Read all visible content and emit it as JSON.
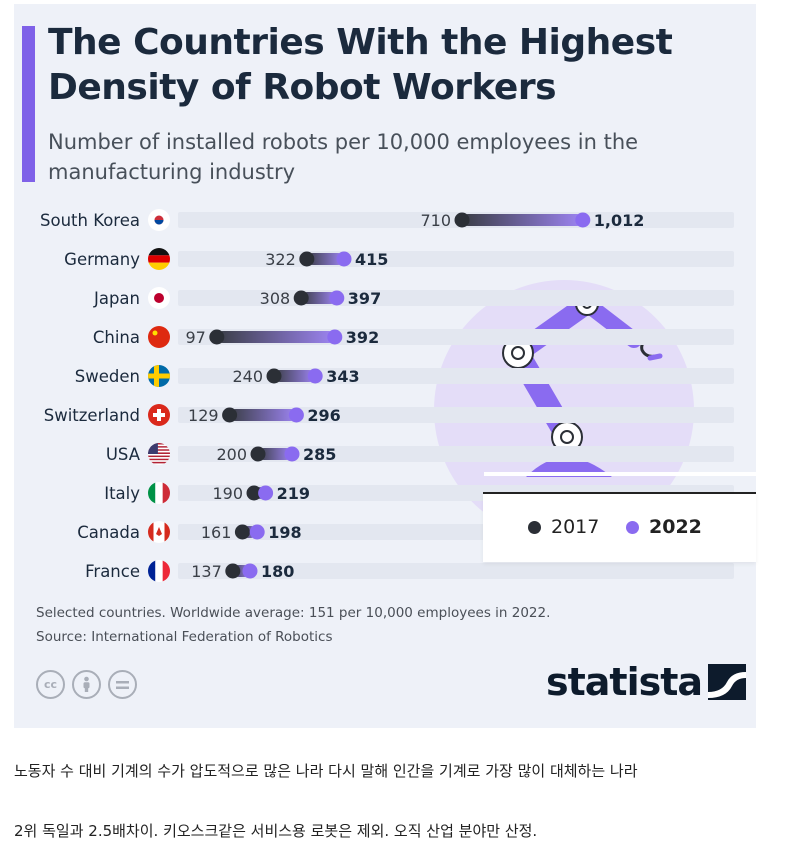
{
  "title": "The Countries With the Highest Density of Robot Workers",
  "subtitle": "Number of installed robots per 10,000 employees in the manufacturing industry",
  "legend": {
    "label_2017": "2017",
    "label_2022": "2022"
  },
  "colors": {
    "accent": "#7f61e8",
    "dot_2017": "#2b2f36",
    "dot_2022": "#8a6bf0",
    "text_dark": "#1b2a3d"
  },
  "note": "Selected countries. Worldwide average: 151 per 10,000 employees in 2022.",
  "source": "Source: International Federation of Robotics",
  "brand": "statista",
  "license_icons": [
    "cc-icon",
    "by-person-icon",
    "nd-equals-icon"
  ],
  "illustration": "robot-arm-icon",
  "caption_line1": "노동자 수 대비 기계의 수가 압도적으로 많은 나라 다시 말해 인간을 기계로 가장 많이 대체하는 나라",
  "caption_line2": "2위 독일과 2.5배차이. 키오스크같은 서비스용 로봇은 제외. 오직 산업 분야만 산정.",
  "chart_data": {
    "type": "dumbbell",
    "title": "The Countries With the Highest Density of Robot Workers",
    "subtitle": "Number of installed robots per 10,000 employees in the manufacturing industry",
    "categories": [
      "South Korea",
      "Germany",
      "Japan",
      "China",
      "Sweden",
      "Switzerland",
      "USA",
      "Italy",
      "Canada",
      "France"
    ],
    "flag_icons": [
      "flag-south-korea-icon",
      "flag-germany-icon",
      "flag-japan-icon",
      "flag-china-icon",
      "flag-sweden-icon",
      "flag-switzerland-icon",
      "flag-usa-icon",
      "flag-italy-icon",
      "flag-canada-icon",
      "flag-france-icon"
    ],
    "series": [
      {
        "name": "2017",
        "values": [
          710,
          322,
          308,
          97,
          240,
          129,
          200,
          190,
          161,
          137
        ],
        "labels": [
          "710",
          "322",
          "308",
          "97",
          "240",
          "129",
          "200",
          "190",
          "161",
          "137"
        ]
      },
      {
        "name": "2022",
        "values": [
          1012,
          415,
          397,
          392,
          343,
          296,
          285,
          219,
          198,
          180
        ],
        "labels": [
          "1,012",
          "415",
          "397",
          "392",
          "343",
          "296",
          "285",
          "219",
          "198",
          "180"
        ]
      }
    ],
    "xlim": [
      0,
      1250
    ],
    "legend_position": "right"
  }
}
